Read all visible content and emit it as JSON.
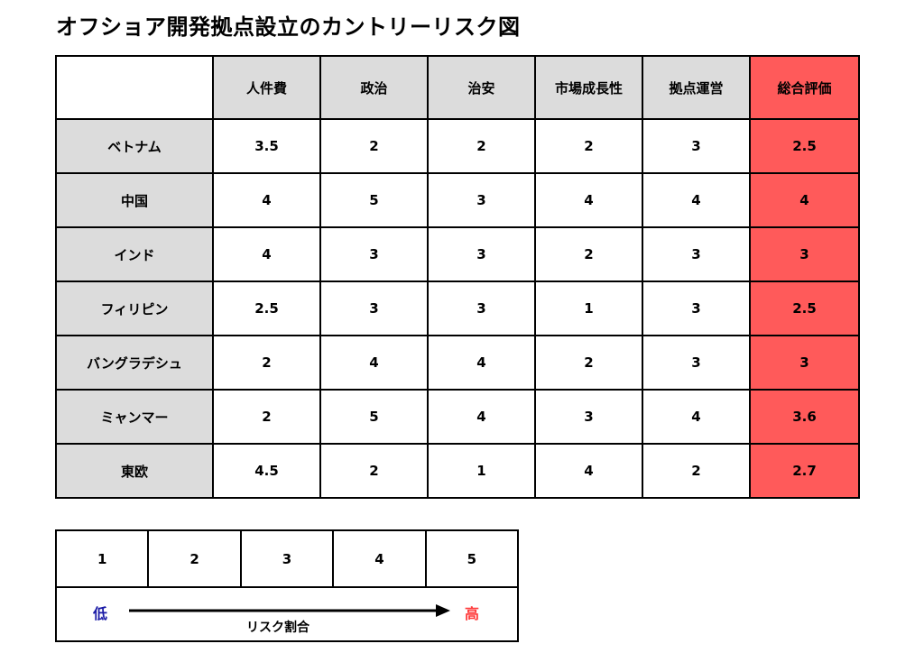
{
  "title": "オフショア開発拠点設立のカントリーリスク図",
  "table": {
    "headers": [
      "人件費",
      "政治",
      "治安",
      "市場成長性",
      "拠点運営",
      "総合評価"
    ],
    "rows": [
      {
        "country": "ベトナム",
        "values": [
          "3.5",
          "2",
          "2",
          "2",
          "3"
        ],
        "total": "2.5"
      },
      {
        "country": "中国",
        "values": [
          "4",
          "5",
          "3",
          "4",
          "4"
        ],
        "total": "4"
      },
      {
        "country": "インド",
        "values": [
          "4",
          "3",
          "3",
          "2",
          "3"
        ],
        "total": "3"
      },
      {
        "country": "フィリピン",
        "values": [
          "2.5",
          "3",
          "3",
          "1",
          "3"
        ],
        "total": "2.5"
      },
      {
        "country": "バングラデシュ",
        "values": [
          "2",
          "4",
          "4",
          "2",
          "3"
        ],
        "total": "3"
      },
      {
        "country": "ミャンマー",
        "values": [
          "2",
          "5",
          "4",
          "3",
          "4"
        ],
        "total": "3.6"
      },
      {
        "country": "東欧",
        "values": [
          "4.5",
          "2",
          "1",
          "4",
          "2"
        ],
        "total": "2.7"
      }
    ]
  },
  "legend": {
    "scale": [
      "1",
      "2",
      "3",
      "4",
      "5"
    ],
    "low": "低",
    "high": "高",
    "label": "リスク割合"
  },
  "colors": {
    "header_gray": "#dcdcdc",
    "total_red": "#ff5a5a",
    "low_color": "#1a1aa6",
    "high_color": "#ff3b3b"
  }
}
